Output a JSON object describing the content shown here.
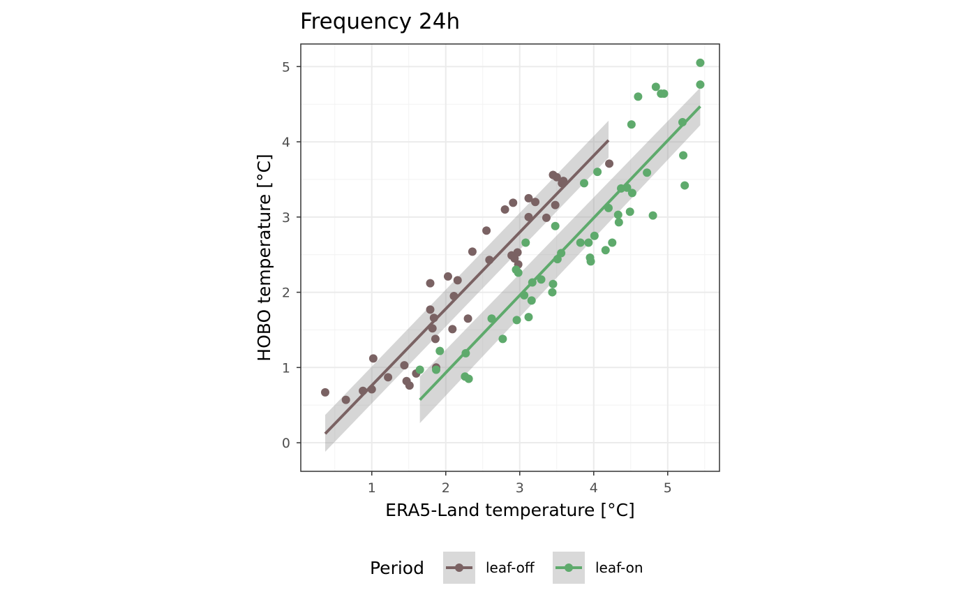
{
  "chart_data": {
    "type": "scatter",
    "title": "Frequency 24h",
    "xlabel": "ERA5-Land temperature [°C]",
    "ylabel": "HOBO temperature [°C]",
    "xlim": [
      0.04,
      5.7
    ],
    "ylim": [
      -0.38,
      5.3
    ],
    "xticks": [
      1,
      2,
      3,
      4,
      5
    ],
    "yticks": [
      0,
      1,
      2,
      3,
      4,
      5
    ],
    "grid": true,
    "legend": {
      "title": "Period",
      "position": "bottom"
    },
    "series": [
      {
        "name": "leaf-off",
        "color": "#7a6263",
        "points": [
          [
            0.37,
            0.67
          ],
          [
            0.65,
            0.57
          ],
          [
            0.88,
            0.69
          ],
          [
            1.0,
            0.71
          ],
          [
            1.02,
            1.12
          ],
          [
            1.22,
            0.87
          ],
          [
            1.44,
            1.03
          ],
          [
            1.47,
            0.82
          ],
          [
            1.51,
            0.76
          ],
          [
            1.6,
            0.92
          ],
          [
            1.79,
            2.12
          ],
          [
            1.79,
            1.77
          ],
          [
            1.82,
            1.52
          ],
          [
            1.84,
            1.66
          ],
          [
            1.86,
            1.38
          ],
          [
            1.87,
            1.0
          ],
          [
            2.03,
            2.21
          ],
          [
            2.09,
            1.51
          ],
          [
            2.11,
            1.95
          ],
          [
            2.16,
            2.16
          ],
          [
            2.3,
            1.65
          ],
          [
            2.36,
            2.54
          ],
          [
            2.55,
            2.82
          ],
          [
            2.59,
            2.43
          ],
          [
            2.8,
            3.1
          ],
          [
            2.89,
            2.49
          ],
          [
            2.91,
            3.19
          ],
          [
            2.93,
            2.45
          ],
          [
            2.97,
            2.53
          ],
          [
            2.98,
            2.37
          ],
          [
            3.12,
            3.0
          ],
          [
            3.12,
            3.25
          ],
          [
            3.21,
            3.2
          ],
          [
            3.36,
            2.99
          ],
          [
            3.45,
            3.56
          ],
          [
            3.48,
            3.16
          ],
          [
            3.5,
            3.53
          ],
          [
            3.57,
            3.45
          ],
          [
            3.59,
            3.48
          ],
          [
            4.21,
            3.71
          ]
        ],
        "fit": {
          "x": [
            0.37,
            4.2
          ],
          "y": [
            0.12,
            4.02
          ],
          "ci_low": [
            -0.12,
            3.79
          ],
          "ci_high": [
            0.37,
            4.28
          ]
        }
      },
      {
        "name": "leaf-on",
        "color": "#5eaa6c",
        "points": [
          [
            1.65,
            0.97
          ],
          [
            1.87,
            0.97
          ],
          [
            1.92,
            1.22
          ],
          [
            2.26,
            0.88
          ],
          [
            2.27,
            1.19
          ],
          [
            2.31,
            0.85
          ],
          [
            2.62,
            1.65
          ],
          [
            2.77,
            1.38
          ],
          [
            2.95,
            2.3
          ],
          [
            2.96,
            1.63
          ],
          [
            2.98,
            2.26
          ],
          [
            3.06,
            1.96
          ],
          [
            3.08,
            2.66
          ],
          [
            3.12,
            1.67
          ],
          [
            3.16,
            1.89
          ],
          [
            3.17,
            2.13
          ],
          [
            3.29,
            2.17
          ],
          [
            3.44,
            2.0
          ],
          [
            3.45,
            2.11
          ],
          [
            3.48,
            2.88
          ],
          [
            3.51,
            2.44
          ],
          [
            3.56,
            2.52
          ],
          [
            3.82,
            2.66
          ],
          [
            3.87,
            3.45
          ],
          [
            3.93,
            2.66
          ],
          [
            3.95,
            2.46
          ],
          [
            3.96,
            2.41
          ],
          [
            4.01,
            2.75
          ],
          [
            4.05,
            3.6
          ],
          [
            4.16,
            2.56
          ],
          [
            4.2,
            3.12
          ],
          [
            4.25,
            2.66
          ],
          [
            4.33,
            3.03
          ],
          [
            4.34,
            2.93
          ],
          [
            4.37,
            3.38
          ],
          [
            4.45,
            3.39
          ],
          [
            4.49,
            3.07
          ],
          [
            4.51,
            4.23
          ],
          [
            4.52,
            3.32
          ],
          [
            4.6,
            4.6
          ],
          [
            4.72,
            3.59
          ],
          [
            4.8,
            3.02
          ],
          [
            4.84,
            4.73
          ],
          [
            4.91,
            4.64
          ],
          [
            4.95,
            4.64
          ],
          [
            5.2,
            4.26
          ],
          [
            5.21,
            3.82
          ],
          [
            5.23,
            3.42
          ],
          [
            5.44,
            5.05
          ],
          [
            5.44,
            4.76
          ]
        ],
        "fit": {
          "x": [
            1.65,
            5.44
          ],
          "y": [
            0.57,
            4.47
          ],
          "ci_low": [
            0.26,
            4.22
          ],
          "ci_high": [
            0.88,
            4.72
          ]
        }
      }
    ]
  }
}
